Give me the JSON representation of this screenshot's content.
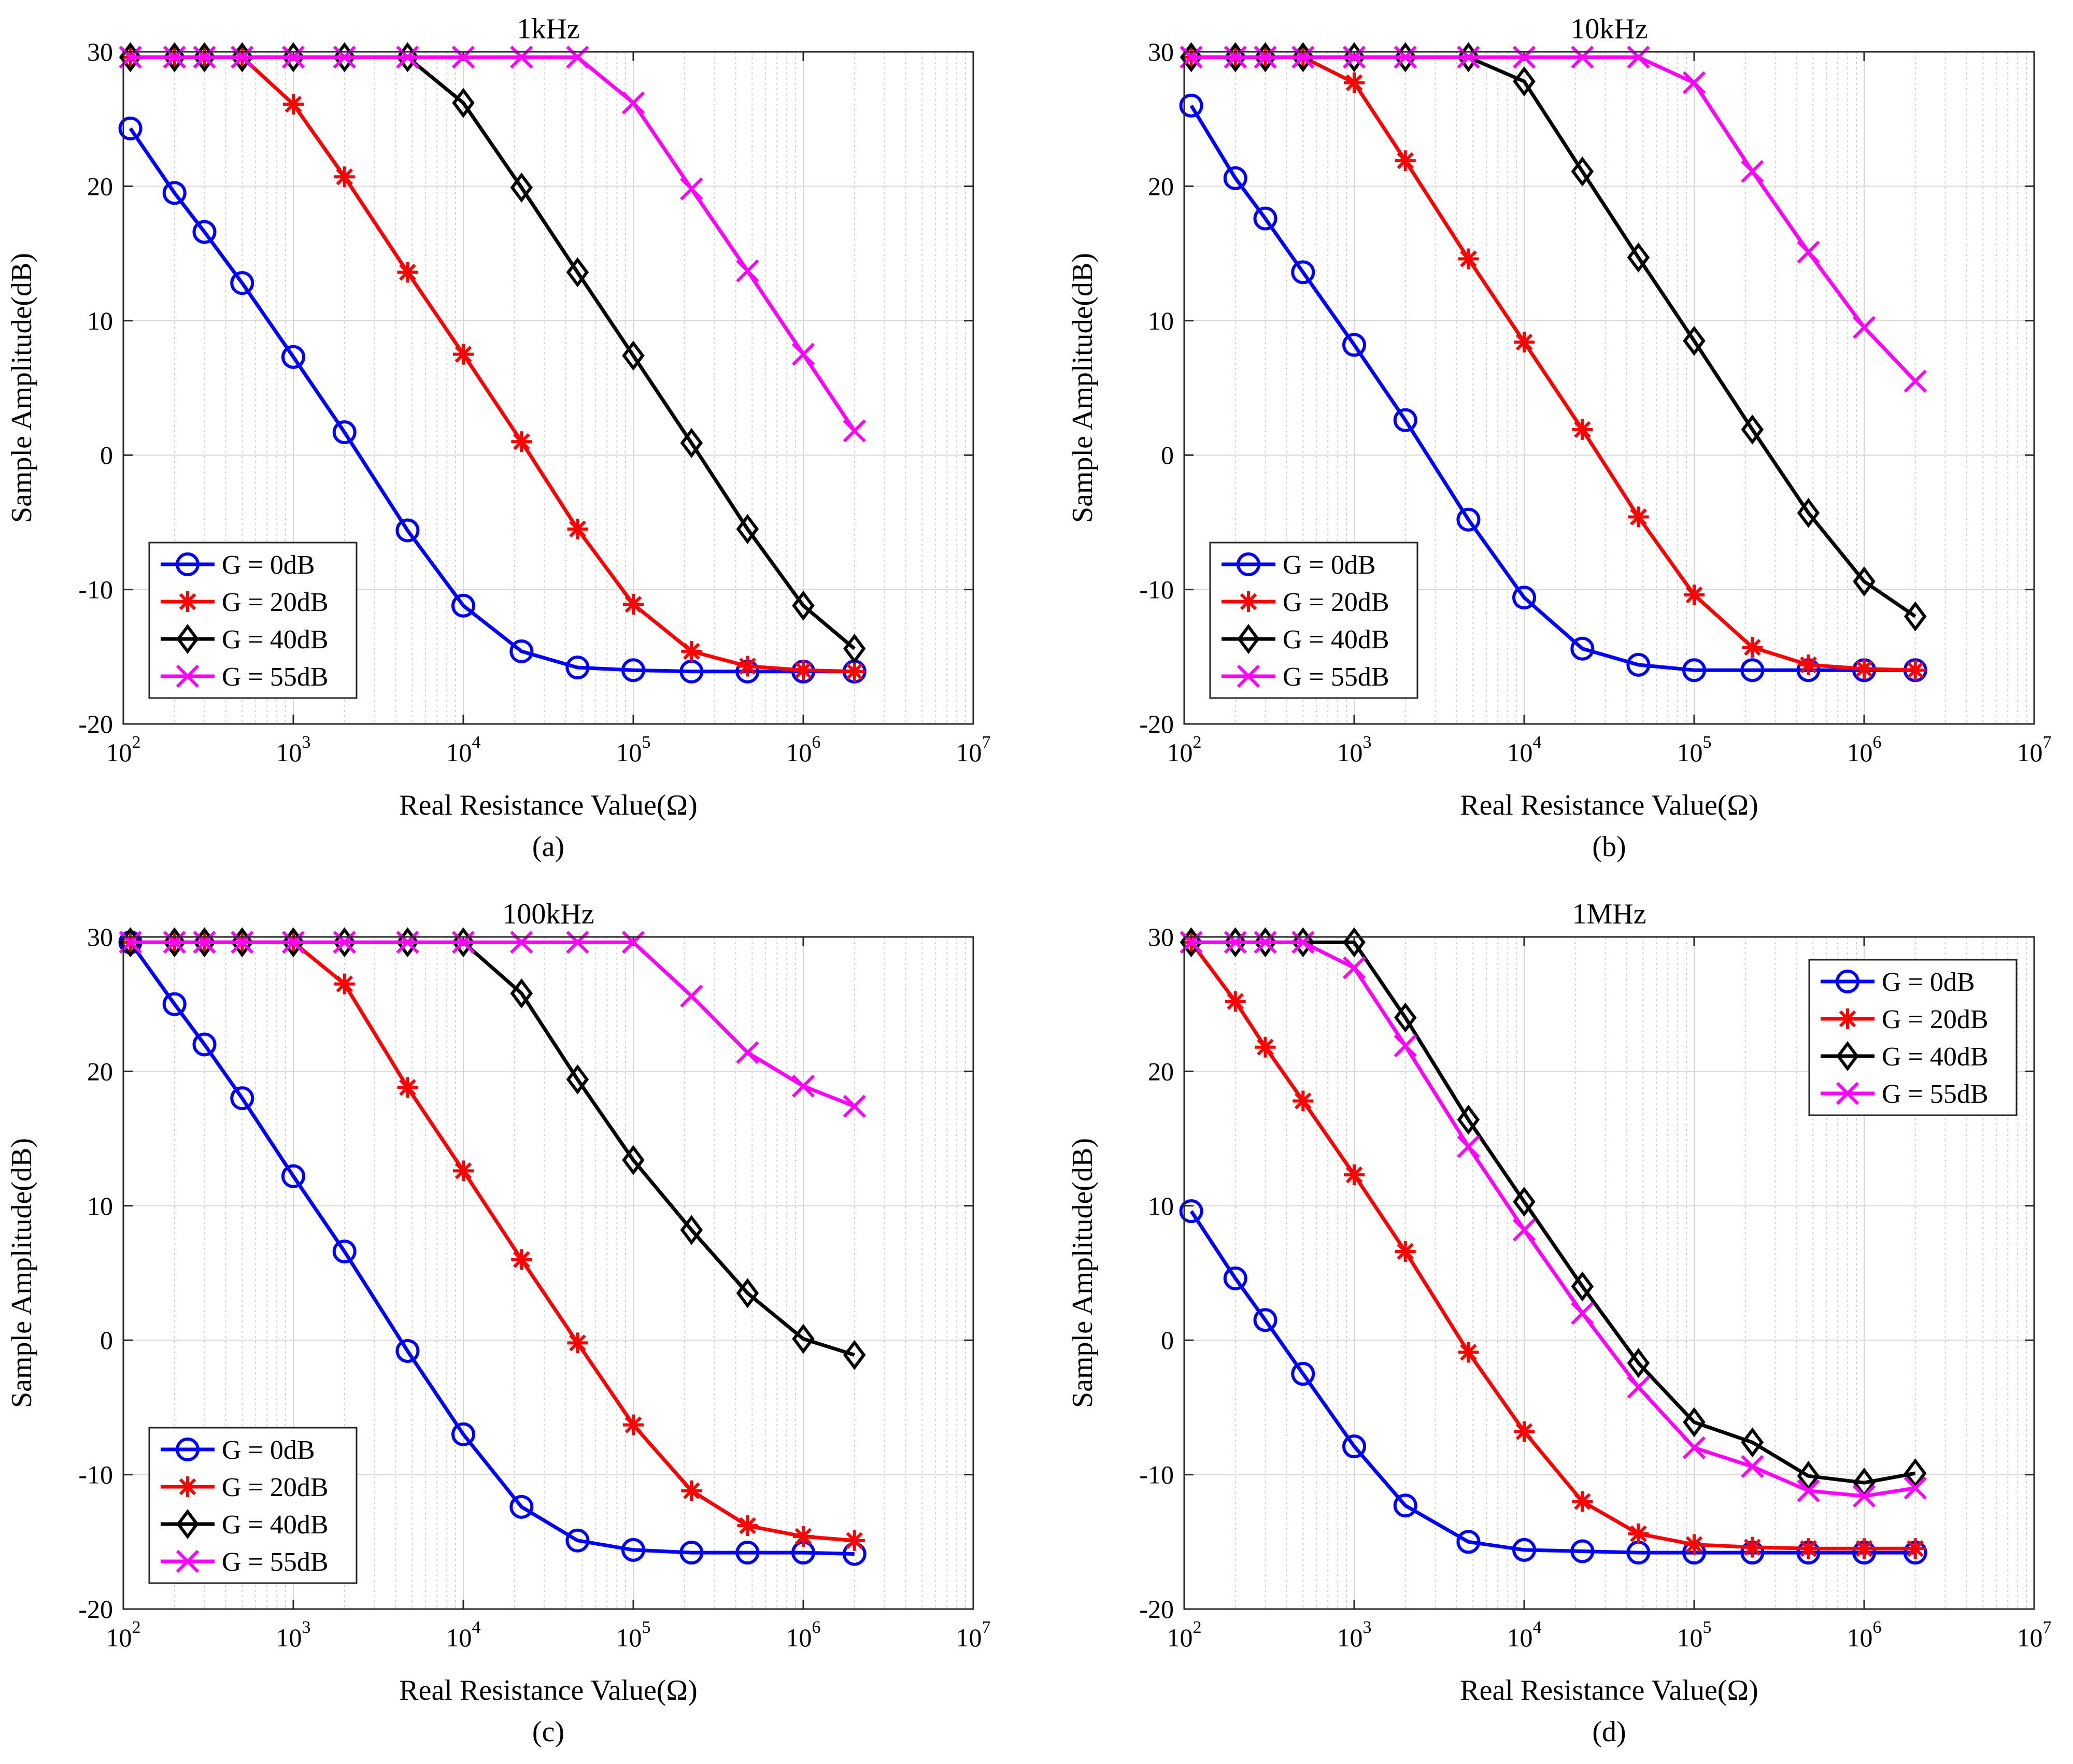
{
  "chart_data": [
    {
      "type": "line",
      "caption": "(a)",
      "title": "1kHz",
      "xlabel": "Real Resistance Value(Ω)",
      "ylabel": "Sample Amplitude(dB)",
      "xscale": "log",
      "xlim": [
        100,
        10000000
      ],
      "ylim": [
        -20,
        30
      ],
      "xticks": [
        {
          "base": "10",
          "exp": "2"
        },
        {
          "base": "10",
          "exp": "3"
        },
        {
          "base": "10",
          "exp": "4"
        },
        {
          "base": "10",
          "exp": "5"
        },
        {
          "base": "10",
          "exp": "6"
        },
        {
          "base": "10",
          "exp": "7"
        }
      ],
      "yticks": [
        "30",
        "20",
        "10",
        "0",
        "-10",
        "-20"
      ],
      "grid": true,
      "legend_position": "bottom-left",
      "x": [
        110,
        200,
        300,
        500,
        1000,
        2000,
        4700,
        10000,
        22000,
        47000,
        100000,
        220000,
        470000,
        1000000,
        2000000
      ],
      "series": [
        {
          "name": "G = 0dB",
          "color": "#0000ff",
          "marker": "circle",
          "values": [
            24.3,
            19.5,
            16.6,
            12.8,
            7.3,
            1.7,
            -5.6,
            -11.2,
            -14.6,
            -15.8,
            -16.0,
            -16.1,
            -16.1,
            -16.1,
            -16.1
          ]
        },
        {
          "name": "G = 20dB",
          "color": "#ff0000",
          "marker": "asterisk",
          "values": [
            29.6,
            29.6,
            29.6,
            29.6,
            26.1,
            20.7,
            13.6,
            7.5,
            1.0,
            -5.5,
            -11.1,
            -14.6,
            -15.7,
            -16.0,
            -16.1
          ]
        },
        {
          "name": "G = 40dB",
          "color": "#000000",
          "marker": "diamond",
          "values": [
            29.6,
            29.6,
            29.6,
            29.6,
            29.6,
            29.6,
            29.6,
            26.2,
            19.9,
            13.6,
            7.4,
            0.9,
            -5.5,
            -11.2,
            -14.4
          ]
        },
        {
          "name": "G = 55dB",
          "color": "#ff00ff",
          "marker": "x",
          "values": [
            29.6,
            29.6,
            29.6,
            29.6,
            29.6,
            29.6,
            29.6,
            29.6,
            29.6,
            29.6,
            26.2,
            19.8,
            13.7,
            7.5,
            1.8
          ]
        }
      ]
    },
    {
      "type": "line",
      "caption": "(b)",
      "title": "10kHz",
      "xlabel": "Real Resistance Value(Ω)",
      "ylabel": "Sample Amplitude(dB)",
      "xscale": "log",
      "xlim": [
        100,
        10000000
      ],
      "ylim": [
        -20,
        30
      ],
      "xticks": [
        {
          "base": "10",
          "exp": "2"
        },
        {
          "base": "10",
          "exp": "3"
        },
        {
          "base": "10",
          "exp": "4"
        },
        {
          "base": "10",
          "exp": "5"
        },
        {
          "base": "10",
          "exp": "6"
        },
        {
          "base": "10",
          "exp": "7"
        }
      ],
      "yticks": [
        "30",
        "20",
        "10",
        "0",
        "-10",
        "-20"
      ],
      "grid": true,
      "legend_position": "bottom-left",
      "x": [
        110,
        200,
        300,
        500,
        1000,
        2000,
        4700,
        10000,
        22000,
        47000,
        100000,
        220000,
        470000,
        1000000,
        2000000
      ],
      "series": [
        {
          "name": "G = 0dB",
          "color": "#0000ff",
          "marker": "circle",
          "values": [
            26.0,
            20.6,
            17.6,
            13.6,
            8.2,
            2.6,
            -4.8,
            -10.6,
            -14.4,
            -15.6,
            -16.0,
            -16.0,
            -16.0,
            -16.0,
            -16.0
          ]
        },
        {
          "name": "G = 20dB",
          "color": "#ff0000",
          "marker": "asterisk",
          "values": [
            29.6,
            29.6,
            29.6,
            29.6,
            27.7,
            21.9,
            14.6,
            8.4,
            1.9,
            -4.6,
            -10.4,
            -14.3,
            -15.6,
            -15.9,
            -16.0
          ]
        },
        {
          "name": "G = 40dB",
          "color": "#000000",
          "marker": "diamond",
          "values": [
            29.6,
            29.6,
            29.6,
            29.6,
            29.6,
            29.6,
            29.6,
            27.8,
            21.1,
            14.7,
            8.5,
            1.9,
            -4.3,
            -9.4,
            -12.0
          ]
        },
        {
          "name": "G = 55dB",
          "color": "#ff00ff",
          "marker": "x",
          "values": [
            29.6,
            29.6,
            29.6,
            29.6,
            29.6,
            29.6,
            29.6,
            29.6,
            29.6,
            29.6,
            27.7,
            21.1,
            15.1,
            9.5,
            5.5
          ]
        }
      ]
    },
    {
      "type": "line",
      "caption": "(c)",
      "title": "100kHz",
      "xlabel": "Real Resistance Value(Ω)",
      "ylabel": "Sample Amplitude(dB)",
      "xscale": "log",
      "xlim": [
        100,
        10000000
      ],
      "ylim": [
        -20,
        30
      ],
      "xticks": [
        {
          "base": "10",
          "exp": "2"
        },
        {
          "base": "10",
          "exp": "3"
        },
        {
          "base": "10",
          "exp": "4"
        },
        {
          "base": "10",
          "exp": "5"
        },
        {
          "base": "10",
          "exp": "6"
        },
        {
          "base": "10",
          "exp": "7"
        }
      ],
      "yticks": [
        "30",
        "20",
        "10",
        "0",
        "-10",
        "-20"
      ],
      "grid": true,
      "legend_position": "bottom-left",
      "x": [
        110,
        200,
        300,
        500,
        1000,
        2000,
        4700,
        10000,
        22000,
        47000,
        100000,
        220000,
        470000,
        1000000,
        2000000
      ],
      "series": [
        {
          "name": "G = 0dB",
          "color": "#0000ff",
          "marker": "circle",
          "values": [
            29.6,
            25.0,
            22.0,
            18.0,
            12.2,
            6.6,
            -0.8,
            -7.0,
            -12.4,
            -14.9,
            -15.6,
            -15.8,
            -15.8,
            -15.8,
            -15.9
          ]
        },
        {
          "name": "G = 20dB",
          "color": "#ff0000",
          "marker": "asterisk",
          "values": [
            29.6,
            29.6,
            29.6,
            29.6,
            29.6,
            26.5,
            18.8,
            12.6,
            6.0,
            -0.2,
            -6.3,
            -11.2,
            -13.8,
            -14.6,
            -14.9
          ]
        },
        {
          "name": "G = 40dB",
          "color": "#000000",
          "marker": "diamond",
          "values": [
            29.6,
            29.6,
            29.6,
            29.6,
            29.6,
            29.6,
            29.6,
            29.6,
            25.8,
            19.4,
            13.4,
            8.2,
            3.5,
            0.1,
            -1.1
          ]
        },
        {
          "name": "G = 55dB",
          "color": "#ff00ff",
          "marker": "x",
          "values": [
            29.6,
            29.6,
            29.6,
            29.6,
            29.6,
            29.6,
            29.6,
            29.6,
            29.6,
            29.6,
            29.6,
            25.6,
            21.4,
            18.9,
            17.4
          ]
        }
      ]
    },
    {
      "type": "line",
      "caption": "(d)",
      "title": "1MHz",
      "xlabel": "Real Resistance Value(Ω)",
      "ylabel": "Sample Amplitude(dB)",
      "xscale": "log",
      "xlim": [
        100,
        10000000
      ],
      "ylim": [
        -20,
        30
      ],
      "xticks": [
        {
          "base": "10",
          "exp": "2"
        },
        {
          "base": "10",
          "exp": "3"
        },
        {
          "base": "10",
          "exp": "4"
        },
        {
          "base": "10",
          "exp": "5"
        },
        {
          "base": "10",
          "exp": "6"
        },
        {
          "base": "10",
          "exp": "7"
        }
      ],
      "yticks": [
        "30",
        "20",
        "10",
        "0",
        "-10",
        "-20"
      ],
      "grid": true,
      "legend_position": "top-right",
      "x": [
        110,
        200,
        300,
        500,
        1000,
        2000,
        4700,
        10000,
        22000,
        47000,
        100000,
        220000,
        470000,
        1000000,
        2000000
      ],
      "series": [
        {
          "name": "G = 0dB",
          "color": "#0000ff",
          "marker": "circle",
          "values": [
            9.6,
            4.6,
            1.5,
            -2.5,
            -7.9,
            -12.3,
            -15.0,
            -15.6,
            -15.7,
            -15.8,
            -15.8,
            -15.8,
            -15.8,
            -15.8,
            -15.8
          ]
        },
        {
          "name": "G = 20dB",
          "color": "#ff0000",
          "marker": "asterisk",
          "values": [
            29.6,
            25.2,
            21.8,
            17.8,
            12.3,
            6.6,
            -0.9,
            -6.8,
            -12.0,
            -14.4,
            -15.2,
            -15.4,
            -15.5,
            -15.5,
            -15.5
          ]
        },
        {
          "name": "G = 40dB",
          "color": "#000000",
          "marker": "diamond",
          "values": [
            29.6,
            29.6,
            29.6,
            29.6,
            29.6,
            24.0,
            16.4,
            10.3,
            4.0,
            -1.7,
            -6.1,
            -7.6,
            -10.1,
            -10.6,
            -9.9
          ]
        },
        {
          "name": "G = 55dB",
          "color": "#ff00ff",
          "marker": "x",
          "values": [
            29.6,
            29.6,
            29.6,
            29.6,
            27.7,
            21.9,
            14.4,
            8.2,
            2.0,
            -3.5,
            -8.0,
            -9.4,
            -11.2,
            -11.6,
            -11.0
          ]
        }
      ]
    }
  ]
}
